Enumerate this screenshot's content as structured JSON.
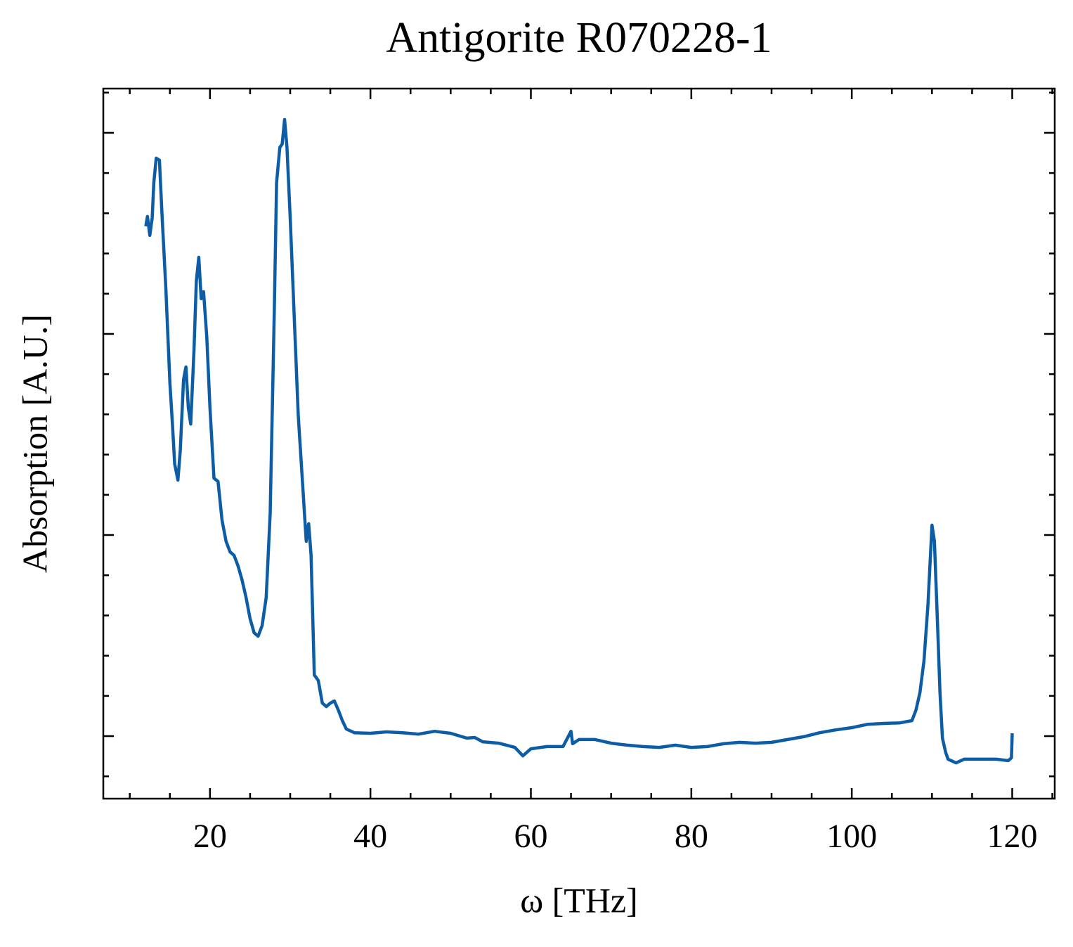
{
  "chart_data": {
    "type": "line",
    "title": "Antigorite R070228-1",
    "xlabel": "ω [THz]",
    "ylabel": "Absorption [A.U.]",
    "x": [
      12.0,
      12.2,
      12.5,
      12.8,
      13.0,
      13.3,
      13.7,
      14.0,
      14.5,
      15.0,
      15.3,
      15.6,
      16.0,
      16.3,
      16.7,
      17.0,
      17.3,
      17.6,
      18.0,
      18.3,
      18.6,
      18.9,
      19.2,
      19.6,
      20.0,
      20.5,
      21.0,
      21.5,
      22.0,
      22.5,
      23.0,
      23.5,
      24.0,
      24.5,
      25.0,
      25.5,
      26.0,
      26.5,
      27.0,
      27.5,
      28.0,
      28.3,
      28.7,
      29.0,
      29.3,
      29.6,
      30.0,
      30.5,
      31.0,
      31.5,
      32.0,
      32.3,
      32.6,
      33.0,
      33.5,
      34.0,
      34.5,
      35.0,
      35.5,
      36.0,
      36.5,
      37.0,
      38.0,
      40,
      42,
      44,
      46,
      48,
      50,
      52,
      53,
      54,
      56,
      58,
      59,
      60,
      62,
      64,
      65,
      65.2,
      66,
      68,
      70,
      72,
      74,
      76,
      78,
      80,
      82,
      84,
      86,
      88,
      90,
      92,
      94,
      96,
      98,
      100,
      102,
      104,
      106,
      107.5,
      108,
      108.5,
      109,
      109.5,
      110,
      110.3,
      110.7,
      111,
      111.3,
      111.7,
      112,
      113,
      114,
      116,
      118,
      119.5,
      119.9,
      120.0
    ],
    "series": [
      {
        "name": "Antigorite R070228-1",
        "color": "#0c5da5",
        "values": [
          2.535,
          2.584,
          2.49,
          2.577,
          2.752,
          2.874,
          2.864,
          2.612,
          2.227,
          1.755,
          1.563,
          1.353,
          1.273,
          1.423,
          1.773,
          1.836,
          1.633,
          1.552,
          1.913,
          2.262,
          2.381,
          2.175,
          2.21,
          1.983,
          1.633,
          1.283,
          1.266,
          1.073,
          0.969,
          0.916,
          0.899,
          0.846,
          0.776,
          0.689,
          0.584,
          0.514,
          0.497,
          0.549,
          0.689,
          1.108,
          2.087,
          2.752,
          2.927,
          2.944,
          3.066,
          2.927,
          2.577,
          2.087,
          1.598,
          1.283,
          0.969,
          1.056,
          0.899,
          0.304,
          0.276,
          0.164,
          0.147,
          0.164,
          0.175,
          0.129,
          0.077,
          0.035,
          0.017,
          0.014,
          0.021,
          0.017,
          0.01,
          0.024,
          0.014,
          -0.01,
          -0.007,
          -0.028,
          -0.035,
          -0.056,
          -0.098,
          -0.063,
          -0.052,
          -0.052,
          0.024,
          -0.038,
          -0.017,
          -0.017,
          -0.035,
          -0.045,
          -0.052,
          -0.056,
          -0.045,
          -0.056,
          -0.052,
          -0.038,
          -0.031,
          -0.035,
          -0.031,
          -0.017,
          -0.003,
          0.017,
          0.031,
          0.042,
          0.059,
          0.063,
          0.066,
          0.077,
          0.129,
          0.217,
          0.374,
          0.654,
          1.049,
          0.969,
          0.549,
          0.217,
          -0.01,
          -0.08,
          -0.115,
          -0.133,
          -0.115,
          -0.115,
          -0.115,
          -0.122,
          -0.108,
          0.014
        ]
      }
    ],
    "xlim": [
      6.7,
      125.3
    ],
    "xticks": [
      20,
      40,
      60,
      80,
      100,
      120
    ],
    "xminorticks": [
      10,
      15,
      25,
      30,
      35,
      45,
      50,
      55,
      65,
      70,
      75,
      85,
      90,
      95,
      105,
      110,
      115,
      125
    ],
    "ylim": [
      -0.311,
      3.22
    ],
    "yticks": [
      0,
      1,
      2,
      3
    ],
    "yminorticks": [
      -0.2,
      0.2,
      0.4,
      0.6,
      0.8,
      1.2,
      1.4,
      1.6,
      1.8,
      2.2,
      2.4,
      2.6,
      2.8,
      3.2
    ],
    "grid": false
  }
}
